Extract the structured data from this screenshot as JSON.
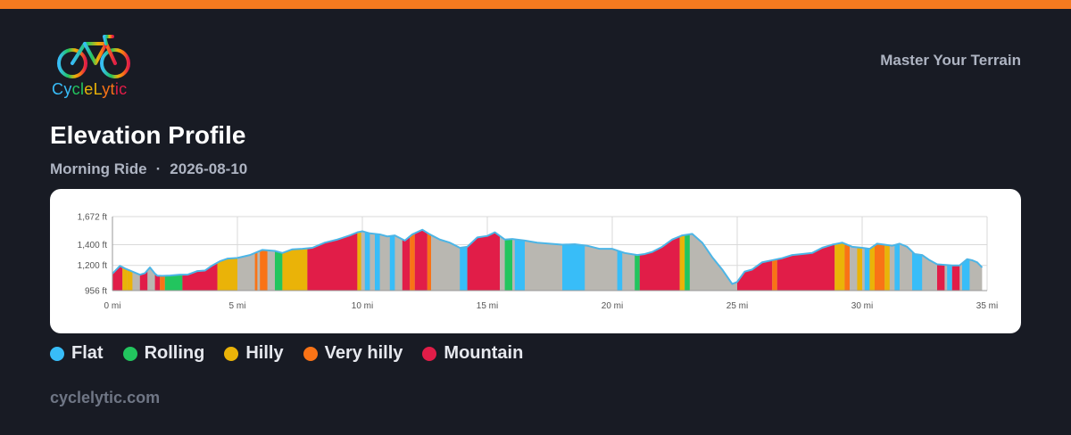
{
  "brand": {
    "name": "CycleLytic",
    "tagline": "Master Your Terrain",
    "website": "cyclelytic.com",
    "accent_color": "#f47a1f"
  },
  "header": {
    "title": "Elevation Profile",
    "activity": "Morning Ride",
    "separator": "·",
    "date": "2026-08-10"
  },
  "legend": [
    {
      "key": "flat",
      "label": "Flat",
      "color": "#38bdf8"
    },
    {
      "key": "rolling",
      "label": "Rolling",
      "color": "#22c55e"
    },
    {
      "key": "hilly",
      "label": "Hilly",
      "color": "#eab308"
    },
    {
      "key": "very_hilly",
      "label": "Very hilly",
      "color": "#f97316"
    },
    {
      "key": "mountain",
      "label": "Mountain",
      "color": "#e11d48"
    }
  ],
  "chart_data": {
    "type": "area",
    "xlabel": "",
    "ylabel": "",
    "xlim": [
      0,
      35
    ],
    "ylim": [
      956,
      1672
    ],
    "x_ticks": [
      0,
      5,
      10,
      15,
      20,
      25,
      30,
      35
    ],
    "x_tick_labels": [
      "0 mi",
      "5 mi",
      "10 mi",
      "15 mi",
      "20 mi",
      "25 mi",
      "30 mi",
      "35 mi"
    ],
    "y_ticks": [
      956,
      1200,
      1400,
      1672
    ],
    "y_tick_labels": [
      "956 ft",
      "1,200 ft",
      "1,400 ft",
      "1,672 ft"
    ],
    "grid": true,
    "default_color": "#b9b7b1",
    "line_color": "#4cb5e6",
    "x": [
      0,
      0.3,
      0.5,
      0.8,
      1.1,
      1.3,
      1.5,
      1.7,
      1.8,
      2.0,
      2.3,
      2.7,
      3.0,
      3.4,
      3.7,
      4.0,
      4.3,
      4.6,
      5.0,
      5.5,
      6.0,
      6.5,
      6.8,
      7.2,
      7.6,
      8.0,
      8.5,
      9.0,
      9.5,
      9.8,
      10.0,
      10.3,
      10.7,
      11.0,
      11.3,
      11.7,
      12.0,
      12.4,
      12.7,
      13.1,
      13.5,
      13.9,
      14.2,
      14.6,
      15.0,
      15.3,
      15.7,
      16.0,
      16.5,
      17.0,
      17.5,
      18.0,
      18.5,
      19.0,
      19.5,
      20.0,
      20.5,
      21.0,
      21.3,
      21.6,
      22.0,
      22.4,
      22.8,
      23.2,
      23.6,
      24.0,
      24.4,
      24.8,
      25.0,
      25.3,
      25.6,
      26.0,
      26.4,
      26.8,
      27.2,
      27.6,
      28.0,
      28.4,
      28.8,
      29.2,
      29.6,
      30.0,
      30.3,
      30.6,
      30.9,
      31.2,
      31.5,
      31.8,
      32.1,
      32.4,
      32.7,
      33.0,
      33.3,
      33.6,
      33.9,
      34.2,
      34.4,
      34.6,
      34.8
    ],
    "y": [
      1120,
      1195,
      1170,
      1140,
      1110,
      1125,
      1180,
      1120,
      1100,
      1098,
      1102,
      1110,
      1110,
      1145,
      1150,
      1200,
      1240,
      1265,
      1272,
      1300,
      1350,
      1340,
      1320,
      1355,
      1360,
      1370,
      1420,
      1450,
      1490,
      1520,
      1530,
      1510,
      1500,
      1480,
      1490,
      1440,
      1500,
      1545,
      1500,
      1450,
      1420,
      1370,
      1380,
      1470,
      1485,
      1520,
      1450,
      1455,
      1440,
      1420,
      1410,
      1400,
      1405,
      1390,
      1360,
      1360,
      1320,
      1300,
      1310,
      1330,
      1380,
      1450,
      1490,
      1505,
      1420,
      1280,
      1160,
      1020,
      1040,
      1140,
      1160,
      1230,
      1250,
      1270,
      1300,
      1310,
      1320,
      1370,
      1400,
      1420,
      1380,
      1370,
      1360,
      1410,
      1400,
      1390,
      1410,
      1380,
      1310,
      1300,
      1250,
      1210,
      1205,
      1200,
      1200,
      1260,
      1250,
      1230,
      1180
    ],
    "segments": [
      {
        "from": 0,
        "to": 0.4,
        "type": "mountain"
      },
      {
        "from": 0.4,
        "to": 0.6,
        "type": "hilly"
      },
      {
        "from": 0.6,
        "to": 0.8,
        "type": "hilly"
      },
      {
        "from": 1.1,
        "to": 1.4,
        "type": "mountain"
      },
      {
        "from": 1.7,
        "to": 1.9,
        "type": "mountain"
      },
      {
        "from": 1.9,
        "to": 2.1,
        "type": "very_hilly"
      },
      {
        "from": 2.1,
        "to": 2.8,
        "type": "rolling"
      },
      {
        "from": 2.8,
        "to": 4.2,
        "type": "mountain"
      },
      {
        "from": 4.2,
        "to": 5.0,
        "type": "hilly"
      },
      {
        "from": 5.7,
        "to": 5.8,
        "type": "very_hilly"
      },
      {
        "from": 5.9,
        "to": 6.2,
        "type": "very_hilly"
      },
      {
        "from": 6.5,
        "to": 6.8,
        "type": "rolling"
      },
      {
        "from": 6.8,
        "to": 7.8,
        "type": "hilly"
      },
      {
        "from": 7.8,
        "to": 9.8,
        "type": "mountain"
      },
      {
        "from": 9.8,
        "to": 9.95,
        "type": "hilly"
      },
      {
        "from": 10.1,
        "to": 10.3,
        "type": "flat"
      },
      {
        "from": 10.5,
        "to": 10.7,
        "type": "flat"
      },
      {
        "from": 11.1,
        "to": 11.3,
        "type": "flat"
      },
      {
        "from": 11.6,
        "to": 11.9,
        "type": "mountain"
      },
      {
        "from": 11.9,
        "to": 12.1,
        "type": "very_hilly"
      },
      {
        "from": 12.1,
        "to": 12.6,
        "type": "mountain"
      },
      {
        "from": 12.6,
        "to": 12.75,
        "type": "very_hilly"
      },
      {
        "from": 13.9,
        "to": 14.2,
        "type": "flat"
      },
      {
        "from": 14.2,
        "to": 15.5,
        "type": "mountain"
      },
      {
        "from": 15.7,
        "to": 16.0,
        "type": "rolling"
      },
      {
        "from": 16.1,
        "to": 16.5,
        "type": "flat"
      },
      {
        "from": 18.0,
        "to": 18.9,
        "type": "flat"
      },
      {
        "from": 20.2,
        "to": 20.4,
        "type": "flat"
      },
      {
        "from": 20.9,
        "to": 21.1,
        "type": "rolling"
      },
      {
        "from": 21.1,
        "to": 22.7,
        "type": "mountain"
      },
      {
        "from": 22.7,
        "to": 22.9,
        "type": "hilly"
      },
      {
        "from": 22.9,
        "to": 23.1,
        "type": "rolling"
      },
      {
        "from": 25.0,
        "to": 26.4,
        "type": "mountain"
      },
      {
        "from": 26.4,
        "to": 26.6,
        "type": "very_hilly"
      },
      {
        "from": 26.6,
        "to": 28.9,
        "type": "mountain"
      },
      {
        "from": 28.9,
        "to": 29.3,
        "type": "hilly"
      },
      {
        "from": 29.3,
        "to": 29.5,
        "type": "very_hilly"
      },
      {
        "from": 29.8,
        "to": 30.0,
        "type": "hilly"
      },
      {
        "from": 30.1,
        "to": 30.3,
        "type": "flat"
      },
      {
        "from": 30.3,
        "to": 30.5,
        "type": "hilly"
      },
      {
        "from": 30.5,
        "to": 30.9,
        "type": "very_hilly"
      },
      {
        "from": 30.9,
        "to": 31.1,
        "type": "hilly"
      },
      {
        "from": 31.3,
        "to": 31.5,
        "type": "flat"
      },
      {
        "from": 32.0,
        "to": 32.4,
        "type": "flat"
      },
      {
        "from": 33.0,
        "to": 33.3,
        "type": "mountain"
      },
      {
        "from": 33.4,
        "to": 33.6,
        "type": "flat"
      },
      {
        "from": 33.6,
        "to": 33.9,
        "type": "mountain"
      },
      {
        "from": 34.0,
        "to": 34.3,
        "type": "flat"
      }
    ]
  }
}
